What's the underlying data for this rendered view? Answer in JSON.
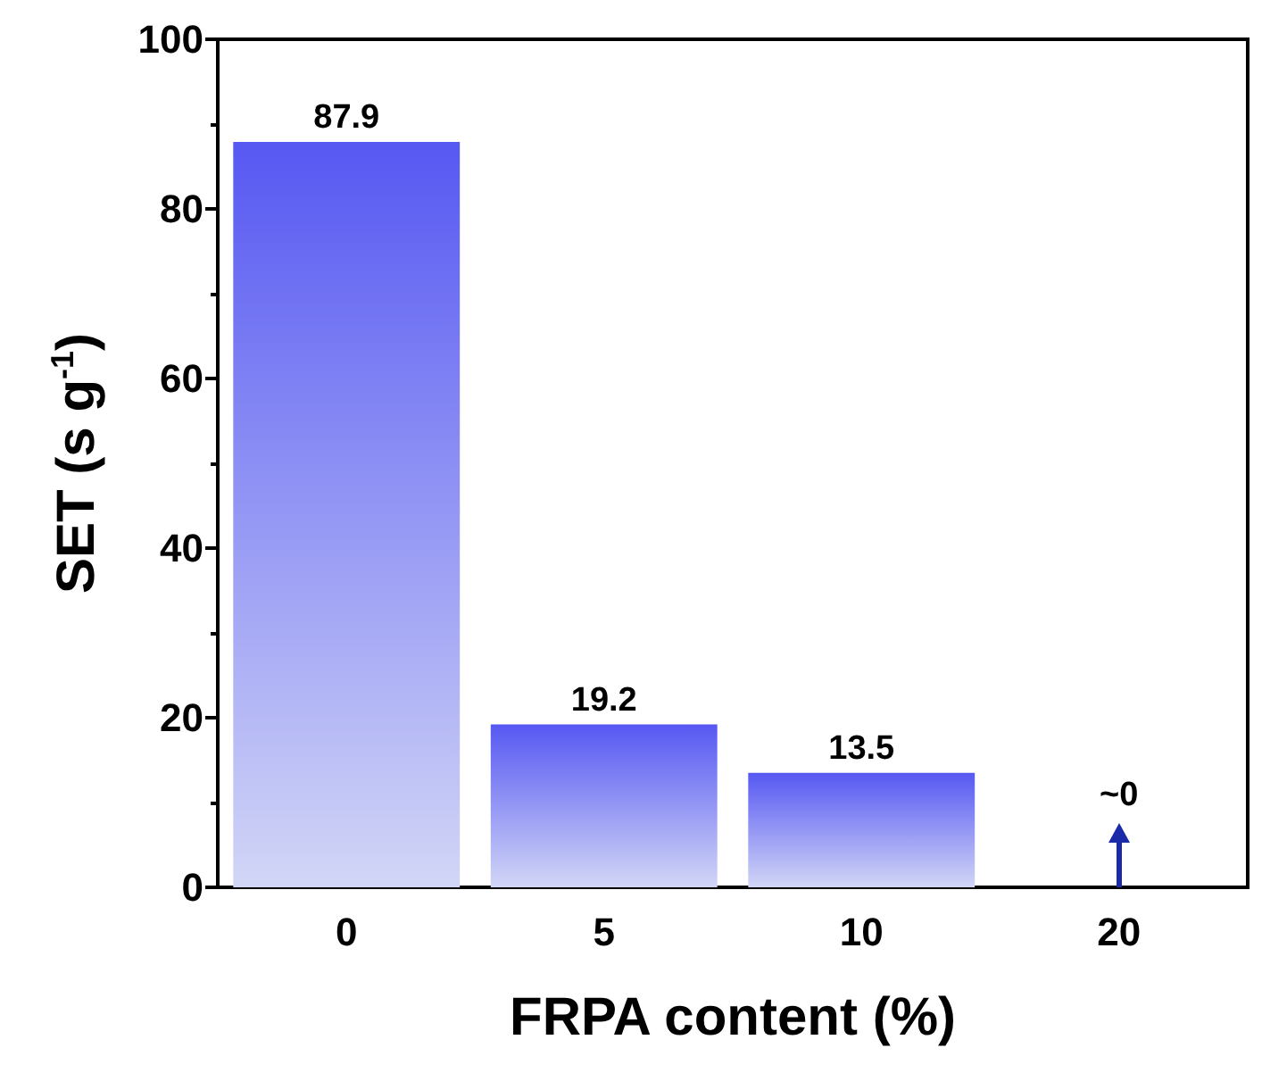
{
  "chart_data": {
    "type": "bar",
    "xlabel": "FRPA content (%)",
    "ylabel": "SET (s g$^{-1}$)",
    "categories": [
      "0",
      "5",
      "10",
      "20"
    ],
    "values": [
      87.9,
      19.2,
      13.5,
      0
    ],
    "value_labels": [
      "87.9",
      "19.2",
      "13.5",
      "~0"
    ],
    "color": "#5658f2",
    "ylim": [
      0,
      100
    ],
    "yticks": [
      0,
      20,
      40,
      60,
      80,
      100
    ],
    "grid": false
  }
}
